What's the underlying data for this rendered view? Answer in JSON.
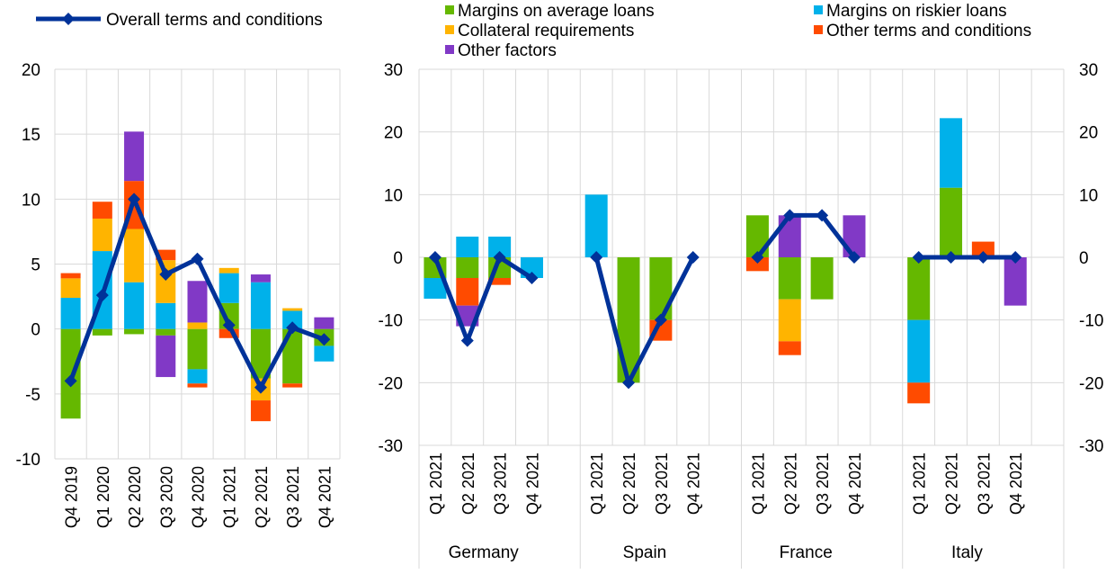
{
  "chart_data": [
    {
      "type": "bar",
      "stacked": true,
      "categories": [
        "Q4 2019",
        "Q1 2020",
        "Q2 2020",
        "Q3 2020",
        "Q4 2020",
        "Q1 2021",
        "Q2 2021",
        "Q3 2021",
        "Q4 2021"
      ],
      "ylim": [
        -10,
        20
      ],
      "yticks": [
        -10,
        -5,
        0,
        5,
        10,
        15,
        20
      ],
      "grid": true,
      "series": [
        {
          "name": "Margins on average loans",
          "color": "#65b800",
          "values": [
            -6.9,
            -0.5,
            -0.4,
            -0.5,
            -3.1,
            2.0,
            -3.8,
            -4.2,
            -1.3
          ]
        },
        {
          "name": "Margins on riskier loans",
          "color": "#00b1ea",
          "values": [
            2.4,
            6.0,
            3.6,
            2.0,
            -1.1,
            2.3,
            3.6,
            1.4,
            -1.2
          ]
        },
        {
          "name": "Collateral requirements",
          "color": "#ffb400",
          "values": [
            1.5,
            2.5,
            4.1,
            3.3,
            0.5,
            0.4,
            -1.7,
            0.2,
            0.0
          ]
        },
        {
          "name": "Other terms and conditions",
          "color": "#ff4b00",
          "values": [
            0.4,
            1.3,
            3.7,
            0.8,
            -0.3,
            -0.7,
            -1.6,
            -0.3,
            0.0
          ]
        },
        {
          "name": "Other factors",
          "color": "#8139c6",
          "values": [
            0.0,
            0.0,
            3.8,
            -3.2,
            3.2,
            0.0,
            0.6,
            0.0,
            0.9
          ]
        }
      ],
      "line": {
        "name": "Overall terms and conditions",
        "color": "#003299",
        "values": [
          -4.0,
          2.6,
          10.0,
          4.2,
          5.4,
          0.3,
          -4.5,
          0.1,
          -0.8
        ]
      }
    },
    {
      "type": "bar",
      "stacked": true,
      "groups": [
        {
          "label": "Germany",
          "categories": [
            "Q1 2021",
            "Q2 2021",
            "Q3 2021",
            "Q4 2021"
          ]
        },
        {
          "label": "Spain",
          "categories": [
            "Q1 2021",
            "Q2 2021",
            "Q3 2021",
            "Q4 2021"
          ]
        },
        {
          "label": "France",
          "categories": [
            "Q1 2021",
            "Q2 2021",
            "Q3 2021",
            "Q4 2021"
          ]
        },
        {
          "label": "Italy",
          "categories": [
            "Q1 2021",
            "Q2 2021",
            "Q3 2021",
            "Q4 2021"
          ]
        }
      ],
      "ylim": [
        -30,
        30
      ],
      "yticks": [
        -30,
        -20,
        -10,
        0,
        10,
        20,
        30
      ],
      "grid": true,
      "series": [
        {
          "name": "Margins on average loans",
          "color": "#65b800",
          "values": [
            -3.3,
            -3.3,
            -3.3,
            0,
            0,
            -20,
            -10,
            0,
            6.7,
            -6.7,
            -6.7,
            0,
            -10,
            11.1,
            0,
            0
          ]
        },
        {
          "name": "Margins on riskier loans",
          "color": "#00b1ea",
          "values": [
            -3.3,
            3.3,
            3.3,
            -3.3,
            10,
            0,
            0,
            0,
            0,
            0,
            0,
            0,
            -10,
            11.1,
            0,
            0
          ]
        },
        {
          "name": "Collateral requirements",
          "color": "#ffb400",
          "values": [
            0,
            0,
            0,
            0,
            0,
            0,
            0,
            0,
            0,
            -6.7,
            0,
            0,
            0,
            0,
            0,
            0
          ]
        },
        {
          "name": "Other terms and conditions",
          "color": "#ff4b00",
          "values": [
            0,
            -4.4,
            -1.1,
            0,
            0,
            0,
            -3.3,
            0,
            -2.2,
            -2.2,
            0,
            0,
            -3.3,
            0,
            2.5,
            0
          ]
        },
        {
          "name": "Other factors",
          "color": "#8139c6",
          "values": [
            0,
            -3.3,
            0,
            0,
            0,
            0,
            0,
            0,
            0,
            6.7,
            0,
            6.7,
            0,
            0,
            0,
            -7.7
          ]
        }
      ],
      "line": {
        "name": "Overall terms and conditions",
        "color": "#003299",
        "values": [
          [
            0,
            -13.3,
            0,
            -3.3
          ],
          [
            0,
            -20,
            -10,
            0
          ],
          [
            0,
            6.7,
            6.7,
            0
          ],
          [
            0,
            0,
            0,
            0
          ]
        ]
      }
    }
  ],
  "legend": {
    "line_label": "Overall terms and conditions",
    "items": [
      {
        "label": "Margins on average loans",
        "color": "#65b800"
      },
      {
        "label": "Margins on riskier loans",
        "color": "#00b1ea"
      },
      {
        "label": "Collateral requirements",
        "color": "#ffb400"
      },
      {
        "label": "Other terms and conditions",
        "color": "#ff4b00"
      },
      {
        "label": "Other factors",
        "color": "#8139c6"
      }
    ]
  }
}
